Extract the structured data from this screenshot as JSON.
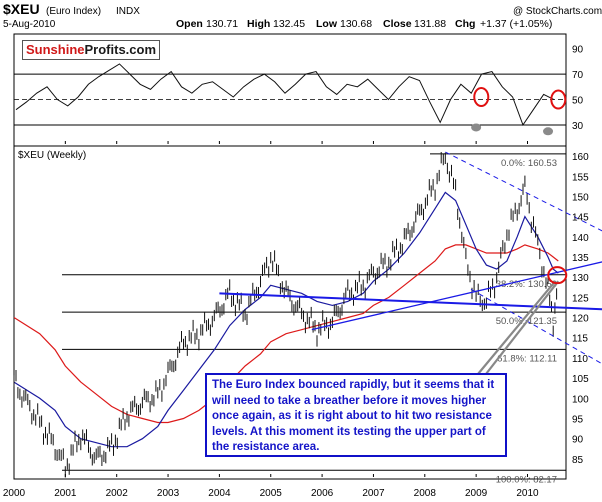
{
  "header": {
    "symbol": "$XEU",
    "name": "(Euro Index)",
    "exchange": "INDX",
    "date": "5-Aug-2010",
    "watermark": "@ StockCharts.com",
    "open_label": "Open",
    "open": "130.71",
    "high_label": "High",
    "high": "132.45",
    "low_label": "Low",
    "low": "130.68",
    "close_label": "Close",
    "close": "131.88",
    "chg_label": "Chg",
    "chg": "+1.37 (+1.05%)"
  },
  "logo": {
    "part1": "Sunshine",
    "part2": "Profits.com"
  },
  "callout": "The Euro Index bounced rapidly, but it seems that it will need  to take a breather before it moves higher once again, as it is right about to hit two resistance levels. At this moment its testing the upper part of the resistance area.",
  "colors": {
    "price": "#111111",
    "ma_short": "#1a1aa0",
    "ma_long": "#dd1a1a",
    "trend": "#1a1ae6",
    "highlight": "#e01010",
    "callout_text": "#1414c8"
  },
  "chart_data": [
    {
      "type": "line",
      "title": "",
      "series": [
        {
          "values": [
            42,
            48,
            55,
            60,
            50,
            45,
            52,
            62,
            68,
            73,
            78,
            70,
            62,
            58,
            66,
            72,
            60,
            55,
            62,
            64,
            58,
            52,
            60,
            66,
            70,
            64,
            55,
            62,
            70,
            72,
            60,
            54,
            62,
            60,
            66,
            58,
            50,
            60,
            68,
            65,
            48,
            32,
            50,
            62,
            55,
            70,
            72,
            60,
            52,
            30,
            42,
            54,
            50
          ]
        }
      ],
      "y_ticks": [
        90,
        70,
        50,
        30
      ],
      "reference_lines": [
        70,
        50,
        30
      ],
      "ylim": [
        15,
        100
      ],
      "highlight_circles": [
        {
          "x": "2009.1",
          "y": 52
        },
        {
          "x": "2010.6",
          "y": 50
        }
      ],
      "shaded_oversold": [
        {
          "x": "2009.0",
          "y": 28
        },
        {
          "x": "2010.4",
          "y": 25
        }
      ]
    },
    {
      "type": "line",
      "title": "$XEU (Weekly)",
      "x": [
        "2000.0",
        "2000.5",
        "2000.8",
        "2001.0",
        "2001.3",
        "2001.6",
        "2001.9",
        "2002.2",
        "2002.5",
        "2002.8",
        "2003.0",
        "2003.3",
        "2003.6",
        "2003.9",
        "2004.2",
        "2004.5",
        "2004.8",
        "2005.0",
        "2005.3",
        "2005.6",
        "2005.9",
        "2006.2",
        "2006.5",
        "2006.8",
        "2007.0",
        "2007.3",
        "2007.6",
        "2007.9",
        "2008.2",
        "2008.4",
        "2008.6",
        "2008.8",
        "2009.0",
        "2009.2",
        "2009.4",
        "2009.6",
        "2009.8",
        "2009.95",
        "2010.2",
        "2010.4",
        "2010.5",
        "2010.6"
      ],
      "series": [
        {
          "values": [
            104,
            94,
            88,
            83,
            91,
            85,
            88,
            96,
            99,
            101,
            106,
            114,
            116,
            120,
            126,
            121,
            129,
            135,
            126,
            121,
            117,
            119,
            126,
            128,
            131,
            134,
            139,
            146,
            153,
            160,
            151,
            134,
            125,
            124,
            130,
            141,
            147,
            152,
            138,
            127,
            119,
            131
          ]
        },
        {
          "values": [
            104,
            100,
            97,
            93,
            90,
            89,
            88,
            88,
            90,
            93,
            97,
            102,
            107,
            112,
            118,
            122,
            125,
            128,
            127,
            126,
            124,
            123,
            124,
            126,
            129,
            132,
            136,
            141,
            147,
            151,
            149,
            143,
            137,
            133,
            132,
            134,
            140,
            145,
            140,
            135,
            132,
            131
          ]
        },
        {
          "values": [
            120,
            116,
            112,
            108,
            104,
            101,
            98,
            96,
            95,
            94,
            94,
            95,
            97,
            100,
            104,
            108,
            111,
            114,
            116,
            117,
            118,
            119,
            120,
            121,
            123,
            125,
            128,
            131,
            134,
            137,
            138,
            138,
            137,
            136,
            136,
            136,
            137,
            138,
            137,
            136,
            135,
            134
          ]
        }
      ],
      "y_ticks": [
        160,
        155,
        150,
        145,
        140,
        135,
        130,
        125,
        120,
        115,
        110,
        105,
        100,
        95,
        90,
        85
      ],
      "x_tick_labels": [
        "2000",
        "2001",
        "2002",
        "2003",
        "2004",
        "2005",
        "2006",
        "2007",
        "2008",
        "2009",
        "2010"
      ],
      "ylim": [
        80.5,
        162
      ],
      "fibonacci": [
        {
          "label": "0.0%: 160.53",
          "value": 160.53
        },
        {
          "label": "38.2%: 130.60",
          "value": 130.6
        },
        {
          "label": "50.0%: 121.35",
          "value": 121.35
        },
        {
          "label": "61.8%: 112.11",
          "value": 112.11
        },
        {
          "label": "100.0%: 82.17",
          "value": 82.17
        }
      ],
      "highlight_circle": {
        "x": "2010.58",
        "y": 130.5
      }
    }
  ]
}
